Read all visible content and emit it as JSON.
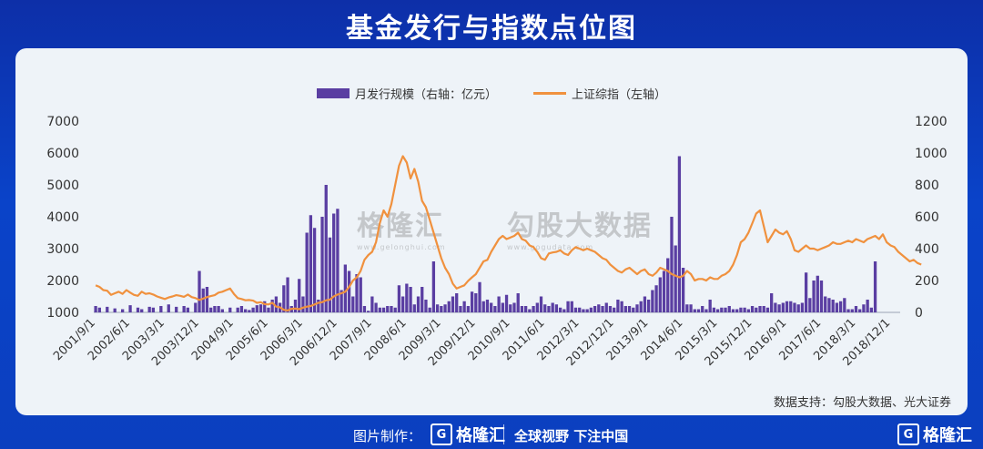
{
  "title": "基金发行与指数点位图",
  "source": "数据支持：勾股大数据、光大证券",
  "watermark": {
    "brand": "格隆汇",
    "brand_url": "www.gelonghui.com",
    "gogu": "勾股大数据",
    "gogu_url": "www.gogudata.com"
  },
  "footer": {
    "made_by": "图片制作：",
    "brand": "格隆汇",
    "slogan": "全球视野 下注中国"
  },
  "colors": {
    "bar": "#5a3ea2",
    "line": "#f0913e",
    "background": "#0b3fbf"
  },
  "chart_data": {
    "type": "bar",
    "legend_position": "top-center",
    "grid": false,
    "x_tick_labels": [
      "2001/9/1",
      "2002/6/1",
      "2003/3/1",
      "2003/12/1",
      "2004/9/1",
      "2005/6/1",
      "2006/3/1",
      "2006/12/1",
      "2007/9/1",
      "2008/6/1",
      "2009/3/1",
      "2009/12/1",
      "2010/9/1",
      "2011/6/1",
      "2012/3/1",
      "2012/12/1",
      "2013/9/1",
      "2014/6/1",
      "2015/3/1",
      "2015/12/1",
      "2016/9/1",
      "2017/6/1",
      "2018/3/1",
      "2018/12/1"
    ],
    "x_start": "2001/9",
    "x_months": 210,
    "left_axis": {
      "ticks": [
        "1000",
        "2000",
        "3000",
        "4000",
        "5000",
        "6000",
        "7000"
      ],
      "ylim": [
        1000,
        7000
      ]
    },
    "right_axis": {
      "ticks": [
        "0",
        "200",
        "400",
        "600",
        "800",
        "1000",
        "1200"
      ],
      "ylim": [
        0,
        1200
      ]
    },
    "series": [
      {
        "name": "月发行规模（右轴：亿元）",
        "type": "bar",
        "axis": "right",
        "values": [
          40,
          30,
          0,
          35,
          0,
          25,
          0,
          20,
          0,
          45,
          0,
          30,
          20,
          0,
          35,
          30,
          0,
          40,
          0,
          50,
          0,
          35,
          0,
          40,
          30,
          0,
          60,
          260,
          150,
          160,
          30,
          40,
          40,
          20,
          0,
          30,
          0,
          30,
          40,
          20,
          15,
          30,
          45,
          50,
          70,
          30,
          80,
          100,
          60,
          170,
          220,
          40,
          80,
          210,
          100,
          500,
          610,
          530,
          80,
          600,
          800,
          470,
          620,
          650,
          140,
          300,
          260,
          100,
          240,
          220,
          40,
          10,
          100,
          60,
          30,
          30,
          40,
          40,
          30,
          170,
          100,
          180,
          160,
          50,
          100,
          160,
          80,
          30,
          320,
          50,
          40,
          50,
          70,
          100,
          120,
          40,
          70,
          40,
          130,
          120,
          190,
          70,
          80,
          60,
          40,
          100,
          60,
          110,
          50,
          60,
          120,
          40,
          40,
          20,
          40,
          60,
          100,
          50,
          40,
          60,
          50,
          30,
          20,
          70,
          70,
          30,
          30,
          20,
          20,
          30,
          40,
          50,
          40,
          60,
          40,
          30,
          80,
          70,
          40,
          40,
          30,
          50,
          70,
          100,
          80,
          140,
          170,
          220,
          260,
          340,
          600,
          420,
          980,
          280,
          50,
          50,
          20,
          20,
          40,
          20,
          80,
          30,
          20,
          30,
          30,
          40,
          20,
          20,
          30,
          30,
          20,
          40,
          30,
          40,
          40,
          30,
          120,
          60,
          50,
          60,
          70,
          70,
          60,
          50,
          60,
          250,
          90,
          200,
          230,
          200,
          100,
          90,
          80,
          60,
          70,
          90,
          20,
          20,
          40,
          20,
          50,
          80,
          30,
          320
        ],
        "color": "#5a3ea2"
      },
      {
        "name": "上证综指（左轴）",
        "type": "line",
        "axis": "left",
        "values": [
          1850,
          1800,
          1700,
          1680,
          1550,
          1600,
          1650,
          1580,
          1700,
          1620,
          1550,
          1520,
          1650,
          1580,
          1600,
          1560,
          1500,
          1460,
          1420,
          1470,
          1500,
          1540,
          1520,
          1490,
          1560,
          1480,
          1450,
          1390,
          1430,
          1480,
          1510,
          1540,
          1620,
          1650,
          1700,
          1750,
          1580,
          1450,
          1420,
          1380,
          1390,
          1370,
          1300,
          1320,
          1260,
          1250,
          1300,
          1180,
          1160,
          1080,
          1060,
          1110,
          1120,
          1100,
          1150,
          1180,
          1200,
          1250,
          1300,
          1320,
          1380,
          1400,
          1500,
          1560,
          1600,
          1650,
          1800,
          2000,
          2100,
          2300,
          2650,
          2800,
          2900,
          3200,
          3800,
          4200,
          4000,
          4400,
          5000,
          5600,
          5900,
          5700,
          5200,
          5500,
          5100,
          4500,
          4300,
          3900,
          3500,
          3100,
          2700,
          2400,
          2200,
          1900,
          1750,
          1800,
          1850,
          1990,
          2100,
          2200,
          2400,
          2600,
          2650,
          2900,
          3100,
          3300,
          3400,
          3300,
          3350,
          3400,
          3500,
          3300,
          3250,
          3100,
          3050,
          2900,
          2700,
          2650,
          2850,
          2880,
          2900,
          2950,
          2850,
          2800,
          2950,
          3050,
          3000,
          2950,
          3000,
          2950,
          2900,
          2800,
          2700,
          2650,
          2500,
          2400,
          2300,
          2250,
          2350,
          2400,
          2300,
          2200,
          2300,
          2350,
          2200,
          2150,
          2250,
          2400,
          2350,
          2300,
          2200,
          2150,
          2100,
          2150,
          2300,
          2200,
          2000,
          2050,
          2050,
          2000,
          2100,
          2050,
          2050,
          2150,
          2200,
          2300,
          2500,
          2800,
          3200,
          3300,
          3500,
          3800,
          4100,
          4200,
          3700,
          3200,
          3400,
          3600,
          3500,
          3450,
          3550,
          3300,
          2950,
          2900,
          3000,
          3100,
          3000,
          3000,
          2950,
          3000,
          3050,
          3100,
          3200,
          3150,
          3150,
          3200,
          3250,
          3200,
          3300,
          3250,
          3200,
          3300,
          3350,
          3400,
          3300,
          3450,
          3200,
          3100,
          3050,
          2900,
          2800,
          2700,
          2600,
          2650,
          2550,
          2500
        ],
        "color": "#f0913e"
      }
    ]
  }
}
